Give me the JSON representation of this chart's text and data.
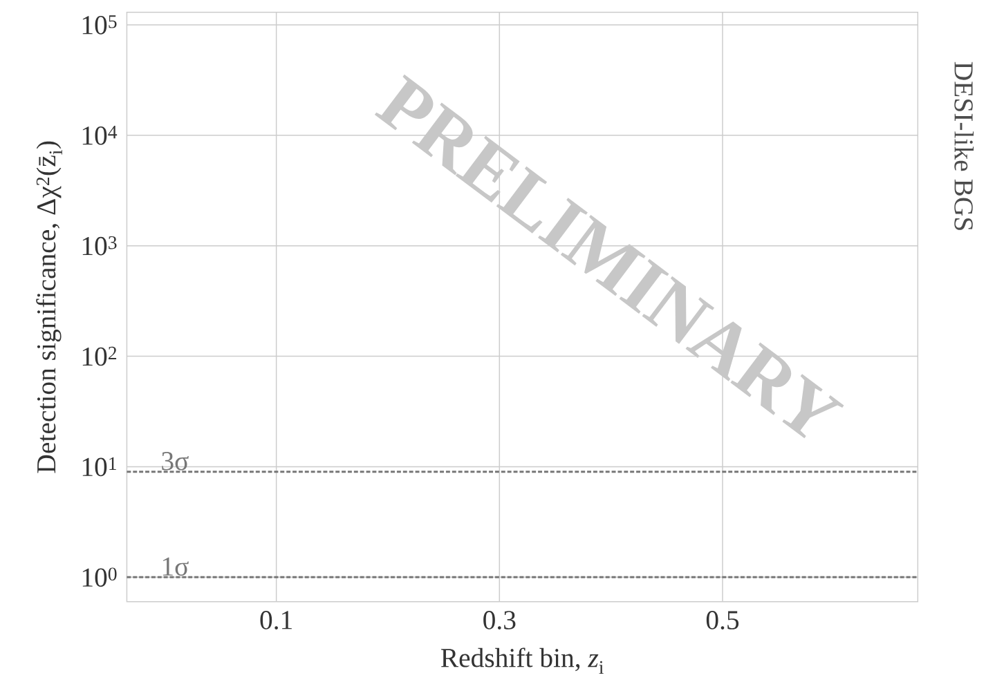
{
  "chart_data": {
    "type": "line",
    "title": "DESI-like BGS",
    "xlabel": "Redshift bin, *z*$_{i}$",
    "ylabel": "Detection significance, Δχ$^{2}$(z̄$_{i}$)",
    "log": "y",
    "grid": true,
    "xlim": [
      -0.034,
      0.675
    ],
    "ylim": [
      0.6,
      130000
    ],
    "xticks": [
      0.1,
      0.3,
      0.5
    ],
    "yticks": [
      {
        "value": 1,
        "label": "10$^{0}$"
      },
      {
        "value": 10,
        "label": "10$^{1}$"
      },
      {
        "value": 100,
        "label": "10$^{2}$"
      },
      {
        "value": 1000,
        "label": "10$^{3}$"
      },
      {
        "value": 10000,
        "label": "10$^{4}$"
      },
      {
        "value": 100000,
        "label": "10$^{5}$"
      }
    ],
    "ref_lines": [
      {
        "axis": "y",
        "value": 9,
        "label": "3σ",
        "color": "#777777",
        "line_style": "dashed"
      },
      {
        "axis": "y",
        "value": 1,
        "label": "1σ",
        "color": "#777777",
        "line_style": "dashed"
      }
    ],
    "annotations": [
      "PRELIMINARY"
    ]
  }
}
